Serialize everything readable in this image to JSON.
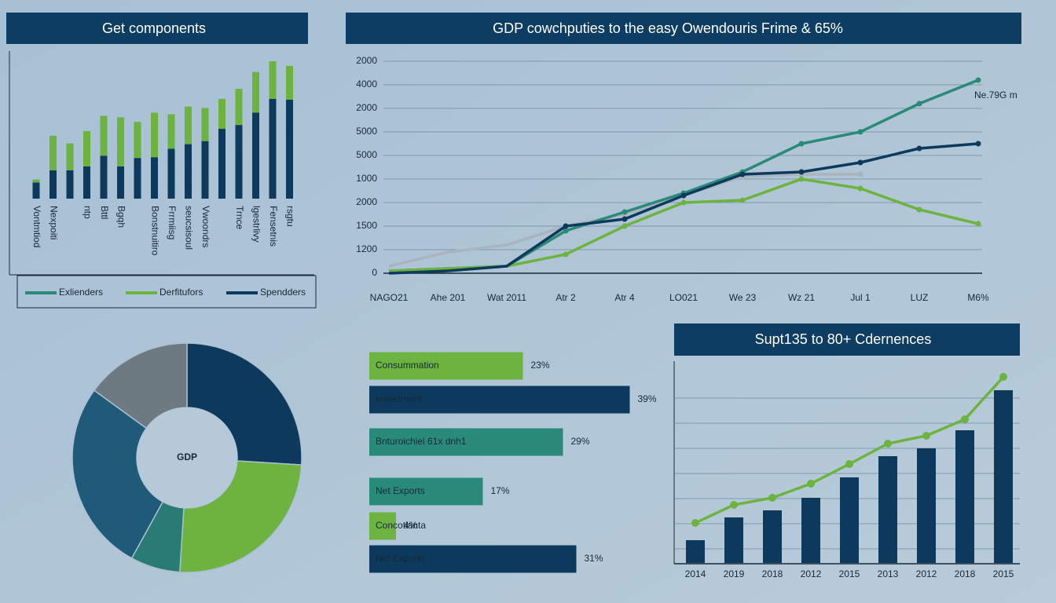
{
  "chart_data": [
    {
      "type": "stacked_bar",
      "title": "Get components",
      "categories": [
        "Vontmtiod",
        "Nexpoiti",
        null,
        "ntp",
        "Bttl",
        "Bgqh",
        null,
        "Bonstnuitiro",
        "Frrmiisg",
        "seucsisoul",
        "Vwoondrs",
        null,
        "Trnce",
        "lgestrlivy",
        "Fensetnis",
        "rsgtu"
      ],
      "series": [
        {
          "name": "Exlienders",
          "color": "#2a8a7a",
          "values": [
            null,
            null,
            null,
            null,
            null,
            null,
            null,
            null,
            null,
            null,
            null,
            null,
            null,
            null,
            null,
            null
          ]
        },
        {
          "name": "Spendders",
          "color": "#0d3a5c",
          "values": [
            21,
            37,
            37,
            42,
            56,
            42,
            53,
            54,
            65,
            71,
            75,
            91,
            96,
            112,
            130,
            129
          ]
        },
        {
          "name": "Derfitufors",
          "color": "#6db33f",
          "values": [
            4,
            45,
            35,
            46,
            52,
            64,
            47,
            58,
            45,
            49,
            43,
            39,
            47,
            53,
            49,
            44
          ]
        }
      ],
      "legend_order": [
        0,
        2,
        1
      ]
    },
    {
      "type": "line",
      "title": "GDP cowchputies to the easy Owendouris Frime & 65%",
      "categories": [
        "NAGO21",
        "Ahe 201",
        "Wat 2011",
        "Atr 2",
        "Atr 4",
        "LO021",
        "We 23",
        "Wz 21",
        "Jul 1",
        "LUZ",
        "M6%"
      ],
      "ycategories": [
        "0",
        "1200",
        "1500",
        "2000",
        "1000",
        "5000",
        "5000",
        "2000",
        "4000",
        "2000"
      ],
      "annotation": "Ne.79G m",
      "grid": true,
      "series": [
        {
          "color": "#a9b4bc",
          "values": [
            0.3,
            0.9,
            1.2,
            2.0,
            2.5,
            3.3,
            4.1,
            4.2,
            4.2,
            null,
            null
          ]
        },
        {
          "color": "#2a8a7a",
          "values": [
            0.1,
            0.2,
            0.3,
            1.8,
            2.6,
            3.4,
            4.3,
            5.5,
            6.0,
            7.2,
            8.2
          ]
        },
        {
          "color": "#6db33f",
          "values": [
            0.1,
            0.2,
            0.3,
            0.8,
            2.0,
            3.0,
            3.1,
            4.0,
            3.6,
            2.7,
            2.1
          ]
        },
        {
          "color": "#0d3a5c",
          "values": [
            0.0,
            0.1,
            0.3,
            2.0,
            2.3,
            3.3,
            4.2,
            4.3,
            4.7,
            5.3,
            5.5
          ]
        }
      ]
    },
    {
      "type": "pie",
      "center_label": "GDP",
      "values": [
        26,
        25,
        7,
        27,
        15
      ],
      "colors": [
        "#0d3a5c",
        "#6db33f",
        "#2a7b73",
        "#1f5b78",
        "#6e7a82"
      ]
    },
    {
      "type": "hbar",
      "categories": [
        "Consummation",
        "Investment",
        "Bnturoichiel 61x dnh1",
        "Net Exports",
        "Concotianta",
        "Net Exports"
      ],
      "values": [
        23,
        39,
        29,
        17,
        4,
        31
      ],
      "value_labels": [
        "23%",
        "39%",
        "29%",
        "17%",
        "4%",
        "31%"
      ],
      "colors": [
        "#6db33f",
        "#0d3a5c",
        "#2a8a7a",
        "#2a8a7a",
        "#6db33f",
        "#0d3a5c"
      ]
    },
    {
      "type": "bar_line",
      "title": "Supt135 to 80+ Cdernences",
      "categories": [
        "2014",
        "2019",
        "2018",
        "2012",
        "2015",
        "2013",
        "2012",
        "2018",
        "2015"
      ],
      "series": [
        {
          "kind": "bar",
          "color": "#0d3a5c",
          "values": [
            29,
            58,
            67,
            83,
            109,
            136,
            146,
            169,
            220
          ]
        },
        {
          "kind": "line",
          "color": "#6db33f",
          "values": [
            51,
            74,
            83,
            101,
            126,
            152,
            162,
            183,
            237
          ]
        }
      ]
    }
  ]
}
